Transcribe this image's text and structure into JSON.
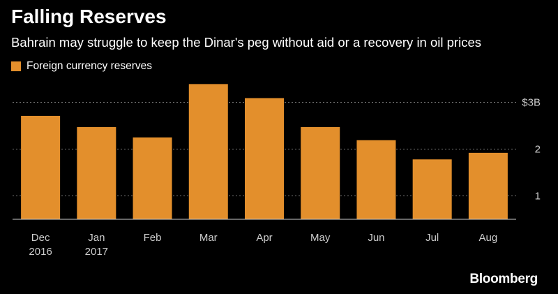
{
  "brand": "Bloomberg",
  "colors": {
    "background": "#000000",
    "bar": "#e38f2c",
    "grid": "#7a7a7a",
    "text": "#ffffff",
    "tick": "#cccccc"
  },
  "chart_data": {
    "type": "bar",
    "title": "Falling Reserves",
    "subtitle": "Bahrain may struggle to keep the Dinar's peg without aid or a recovery in oil prices",
    "categories": [
      [
        "Dec",
        "2016"
      ],
      [
        "Jan",
        "2017"
      ],
      [
        "Feb"
      ],
      [
        "Mar"
      ],
      [
        "Apr"
      ],
      [
        "May"
      ],
      [
        "Jun"
      ],
      [
        "Jul"
      ],
      [
        "Aug"
      ]
    ],
    "series": [
      {
        "name": "Foreign currency reserves",
        "values": [
          2.71,
          2.47,
          2.25,
          3.39,
          3.09,
          2.47,
          2.19,
          1.78,
          1.92
        ]
      }
    ],
    "ylim": [
      0.5,
      3.5
    ],
    "yticks": [
      1,
      2,
      3
    ],
    "ytick_labels": [
      "1",
      "2",
      "$3B"
    ],
    "grid": true,
    "legend_position": "top-left",
    "xlabel": "",
    "ylabel": ""
  }
}
